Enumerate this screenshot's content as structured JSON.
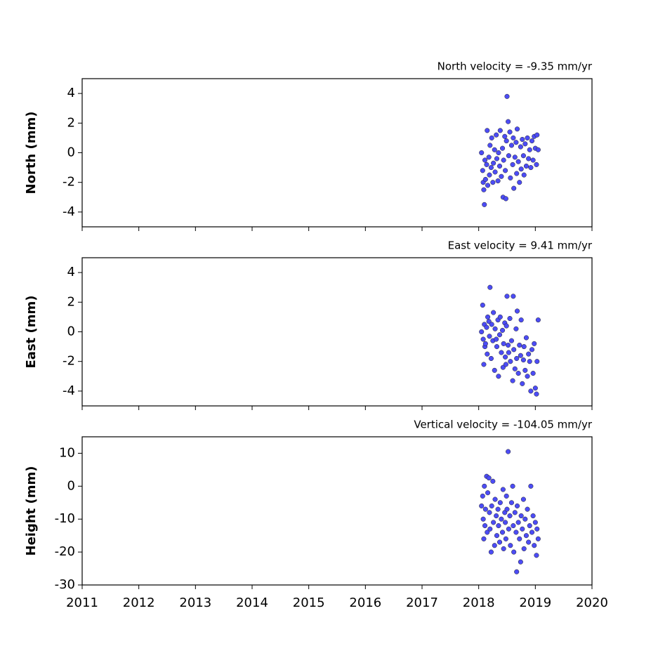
{
  "chart_data": [
    {
      "type": "scatter",
      "title": "North velocity = -9.35 mm/yr",
      "y_label": "North (mm)",
      "color": "#4c4cf5",
      "x": [
        2018.05,
        2018.07,
        2018.08,
        2018.09,
        2018.1,
        2018.11,
        2018.12,
        2018.14,
        2018.15,
        2018.16,
        2018.18,
        2018.19,
        2018.2,
        2018.22,
        2018.23,
        2018.25,
        2018.26,
        2018.28,
        2018.29,
        2018.31,
        2018.32,
        2018.34,
        2018.35,
        2018.37,
        2018.38,
        2018.4,
        2018.42,
        2018.43,
        2018.44,
        2018.46,
        2018.47,
        2018.48,
        2018.49,
        2018.5,
        2018.52,
        2018.53,
        2018.55,
        2018.56,
        2018.58,
        2018.6,
        2018.61,
        2018.62,
        2018.64,
        2018.66,
        2018.67,
        2018.68,
        2018.7,
        2018.72,
        2018.74,
        2018.75,
        2018.77,
        2018.79,
        2018.8,
        2018.82,
        2018.84,
        2018.86,
        2018.88,
        2018.9,
        2018.92,
        2018.94,
        2018.96,
        2018.98,
        2019.0,
        2019.02,
        2019.03,
        2019.05
      ],
      "values": [
        0.0,
        -1.2,
        -2.0,
        -2.5,
        -3.5,
        -0.5,
        -1.8,
        -0.8,
        1.5,
        -2.2,
        -0.3,
        -1.5,
        0.5,
        -1.0,
        1.0,
        -2.0,
        -0.7,
        0.2,
        -1.3,
        1.2,
        -0.4,
        -1.9,
        0.0,
        -0.9,
        1.5,
        -1.6,
        0.3,
        -3.0,
        -0.5,
        1.1,
        -1.2,
        -3.1,
        0.8,
        3.8,
        2.1,
        -0.2,
        1.4,
        -1.7,
        0.5,
        -0.8,
        1.0,
        -2.4,
        -0.3,
        0.7,
        -1.4,
        1.6,
        -0.6,
        -2.0,
        0.4,
        -1.1,
        0.9,
        -0.2,
        -1.5,
        0.6,
        -0.9,
        1.0,
        -0.4,
        0.2,
        -1.0,
        0.8,
        -0.5,
        1.1,
        0.3,
        -0.8,
        1.2,
        0.2
      ],
      "xlim": [
        2011,
        2020
      ],
      "ylim": [
        -5,
        5
      ],
      "yticks": [
        -4,
        -2,
        0,
        2,
        4
      ]
    },
    {
      "type": "scatter",
      "title": "East velocity = 9.41 mm/yr",
      "y_label": "East (mm)",
      "color": "#4c4cf5",
      "x": [
        2018.05,
        2018.07,
        2018.08,
        2018.09,
        2018.1,
        2018.11,
        2018.12,
        2018.14,
        2018.15,
        2018.16,
        2018.18,
        2018.19,
        2018.2,
        2018.22,
        2018.23,
        2018.25,
        2018.26,
        2018.28,
        2018.29,
        2018.31,
        2018.32,
        2018.34,
        2018.35,
        2018.37,
        2018.38,
        2018.4,
        2018.42,
        2018.43,
        2018.44,
        2018.46,
        2018.47,
        2018.48,
        2018.49,
        2018.5,
        2018.52,
        2018.53,
        2018.55,
        2018.56,
        2018.58,
        2018.6,
        2018.61,
        2018.62,
        2018.64,
        2018.66,
        2018.67,
        2018.68,
        2018.7,
        2018.72,
        2018.74,
        2018.75,
        2018.77,
        2018.79,
        2018.8,
        2018.82,
        2018.84,
        2018.86,
        2018.88,
        2018.9,
        2018.92,
        2018.94,
        2018.96,
        2018.98,
        2019.0,
        2019.02,
        2019.03,
        2019.05
      ],
      "values": [
        0.0,
        1.8,
        -0.5,
        -2.2,
        0.5,
        -1.0,
        -0.8,
        0.3,
        -1.5,
        1.0,
        0.7,
        -0.3,
        3.0,
        -1.8,
        0.5,
        -0.6,
        1.3,
        -2.6,
        0.2,
        -0.5,
        -1.0,
        0.8,
        -3.0,
        -0.2,
        1.0,
        -1.4,
        0.1,
        -2.4,
        -0.8,
        0.6,
        -1.7,
        -2.2,
        0.4,
        2.4,
        -0.9,
        -1.4,
        0.9,
        -2.0,
        -0.6,
        -3.3,
        2.4,
        -1.2,
        -2.5,
        0.2,
        -1.8,
        1.4,
        -2.8,
        -0.9,
        -1.6,
        0.8,
        -3.5,
        -1.9,
        -1.0,
        -2.6,
        -0.4,
        -3.0,
        -1.5,
        -2.0,
        -4.0,
        -1.2,
        -2.8,
        -0.8,
        -3.8,
        -4.2,
        -2.0,
        0.8
      ],
      "xlim": [
        2011,
        2020
      ],
      "ylim": [
        -5,
        5
      ],
      "yticks": [
        -4,
        -2,
        0,
        2,
        4
      ]
    },
    {
      "type": "scatter",
      "title": "Vertical velocity = -104.05 mm/yr",
      "y_label": "Height (mm)",
      "color": "#4c4cf5",
      "x": [
        2018.05,
        2018.07,
        2018.08,
        2018.09,
        2018.1,
        2018.11,
        2018.12,
        2018.14,
        2018.15,
        2018.16,
        2018.18,
        2018.19,
        2018.2,
        2018.22,
        2018.23,
        2018.25,
        2018.26,
        2018.28,
        2018.29,
        2018.31,
        2018.32,
        2018.34,
        2018.35,
        2018.37,
        2018.38,
        2018.4,
        2018.42,
        2018.43,
        2018.44,
        2018.46,
        2018.47,
        2018.48,
        2018.49,
        2018.5,
        2018.52,
        2018.53,
        2018.55,
        2018.56,
        2018.58,
        2018.6,
        2018.61,
        2018.62,
        2018.64,
        2018.66,
        2018.67,
        2018.68,
        2018.7,
        2018.72,
        2018.74,
        2018.75,
        2018.77,
        2018.79,
        2018.8,
        2018.82,
        2018.84,
        2018.86,
        2018.88,
        2018.9,
        2018.92,
        2018.94,
        2018.96,
        2018.98,
        2019.0,
        2019.02,
        2019.03,
        2019.05
      ],
      "values": [
        -6,
        -3,
        -10,
        -16,
        0,
        -12,
        -7,
        3,
        -14,
        -2,
        2.5,
        -8,
        -13,
        -20,
        -6,
        1.5,
        -11,
        -18,
        -4,
        -9,
        -15,
        -7,
        -12,
        -17,
        -5,
        -10,
        -14,
        -1,
        -19,
        -8,
        -11,
        -16,
        -3,
        -7,
        10.5,
        -13,
        -9,
        -18,
        -5,
        0,
        -12,
        -20,
        -8,
        -14,
        -26,
        -6,
        -11,
        -16,
        -23,
        -9,
        -13,
        -4,
        -19,
        -10,
        -15,
        -7,
        -17,
        -12,
        0,
        -14,
        -9,
        -18,
        -11,
        -21,
        -13,
        -16
      ],
      "xlim": [
        2011,
        2020
      ],
      "ylim": [
        -30,
        15
      ],
      "yticks": [
        -30,
        -20,
        -10,
        0,
        10
      ],
      "xticks": [
        2011,
        2012,
        2013,
        2014,
        2015,
        2016,
        2017,
        2018,
        2019,
        2020
      ]
    }
  ]
}
